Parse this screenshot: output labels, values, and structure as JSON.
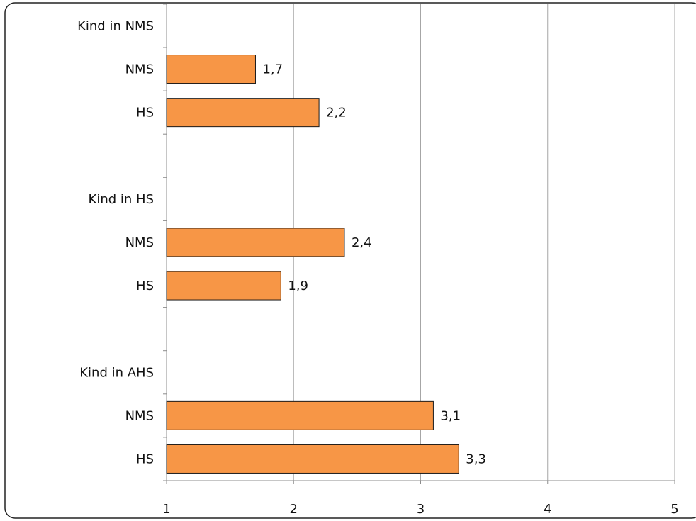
{
  "chart_data": {
    "type": "bar",
    "orientation": "horizontal",
    "title": "",
    "xlabel": "",
    "ylabel": "",
    "xlim": [
      1,
      5
    ],
    "x_ticks": [
      "1",
      "2",
      "3",
      "4",
      "5"
    ],
    "grid": "vertical",
    "legend": "none",
    "decimal_separator": ",",
    "groups": [
      {
        "label": "Kind in NMS",
        "bars": [
          {
            "category": "NMS",
            "value": 1.7,
            "label": "1,7"
          },
          {
            "category": "HS",
            "value": 2.2,
            "label": "2,2"
          }
        ]
      },
      {
        "label": "Kind in HS",
        "bars": [
          {
            "category": "NMS",
            "value": 2.4,
            "label": "2,4"
          },
          {
            "category": "HS",
            "value": 1.9,
            "label": "1,9"
          }
        ]
      },
      {
        "label": "Kind in AHS",
        "bars": [
          {
            "category": "NMS",
            "value": 3.1,
            "label": "3,1"
          },
          {
            "category": "HS",
            "value": 3.3,
            "label": "3,3"
          }
        ]
      }
    ]
  },
  "colors": {
    "bar_fill": "#F79646",
    "bar_stroke": "#1a1a1a",
    "grid": "#a6a6a6",
    "axis": "#8c8c8c",
    "frame": "#222222"
  }
}
